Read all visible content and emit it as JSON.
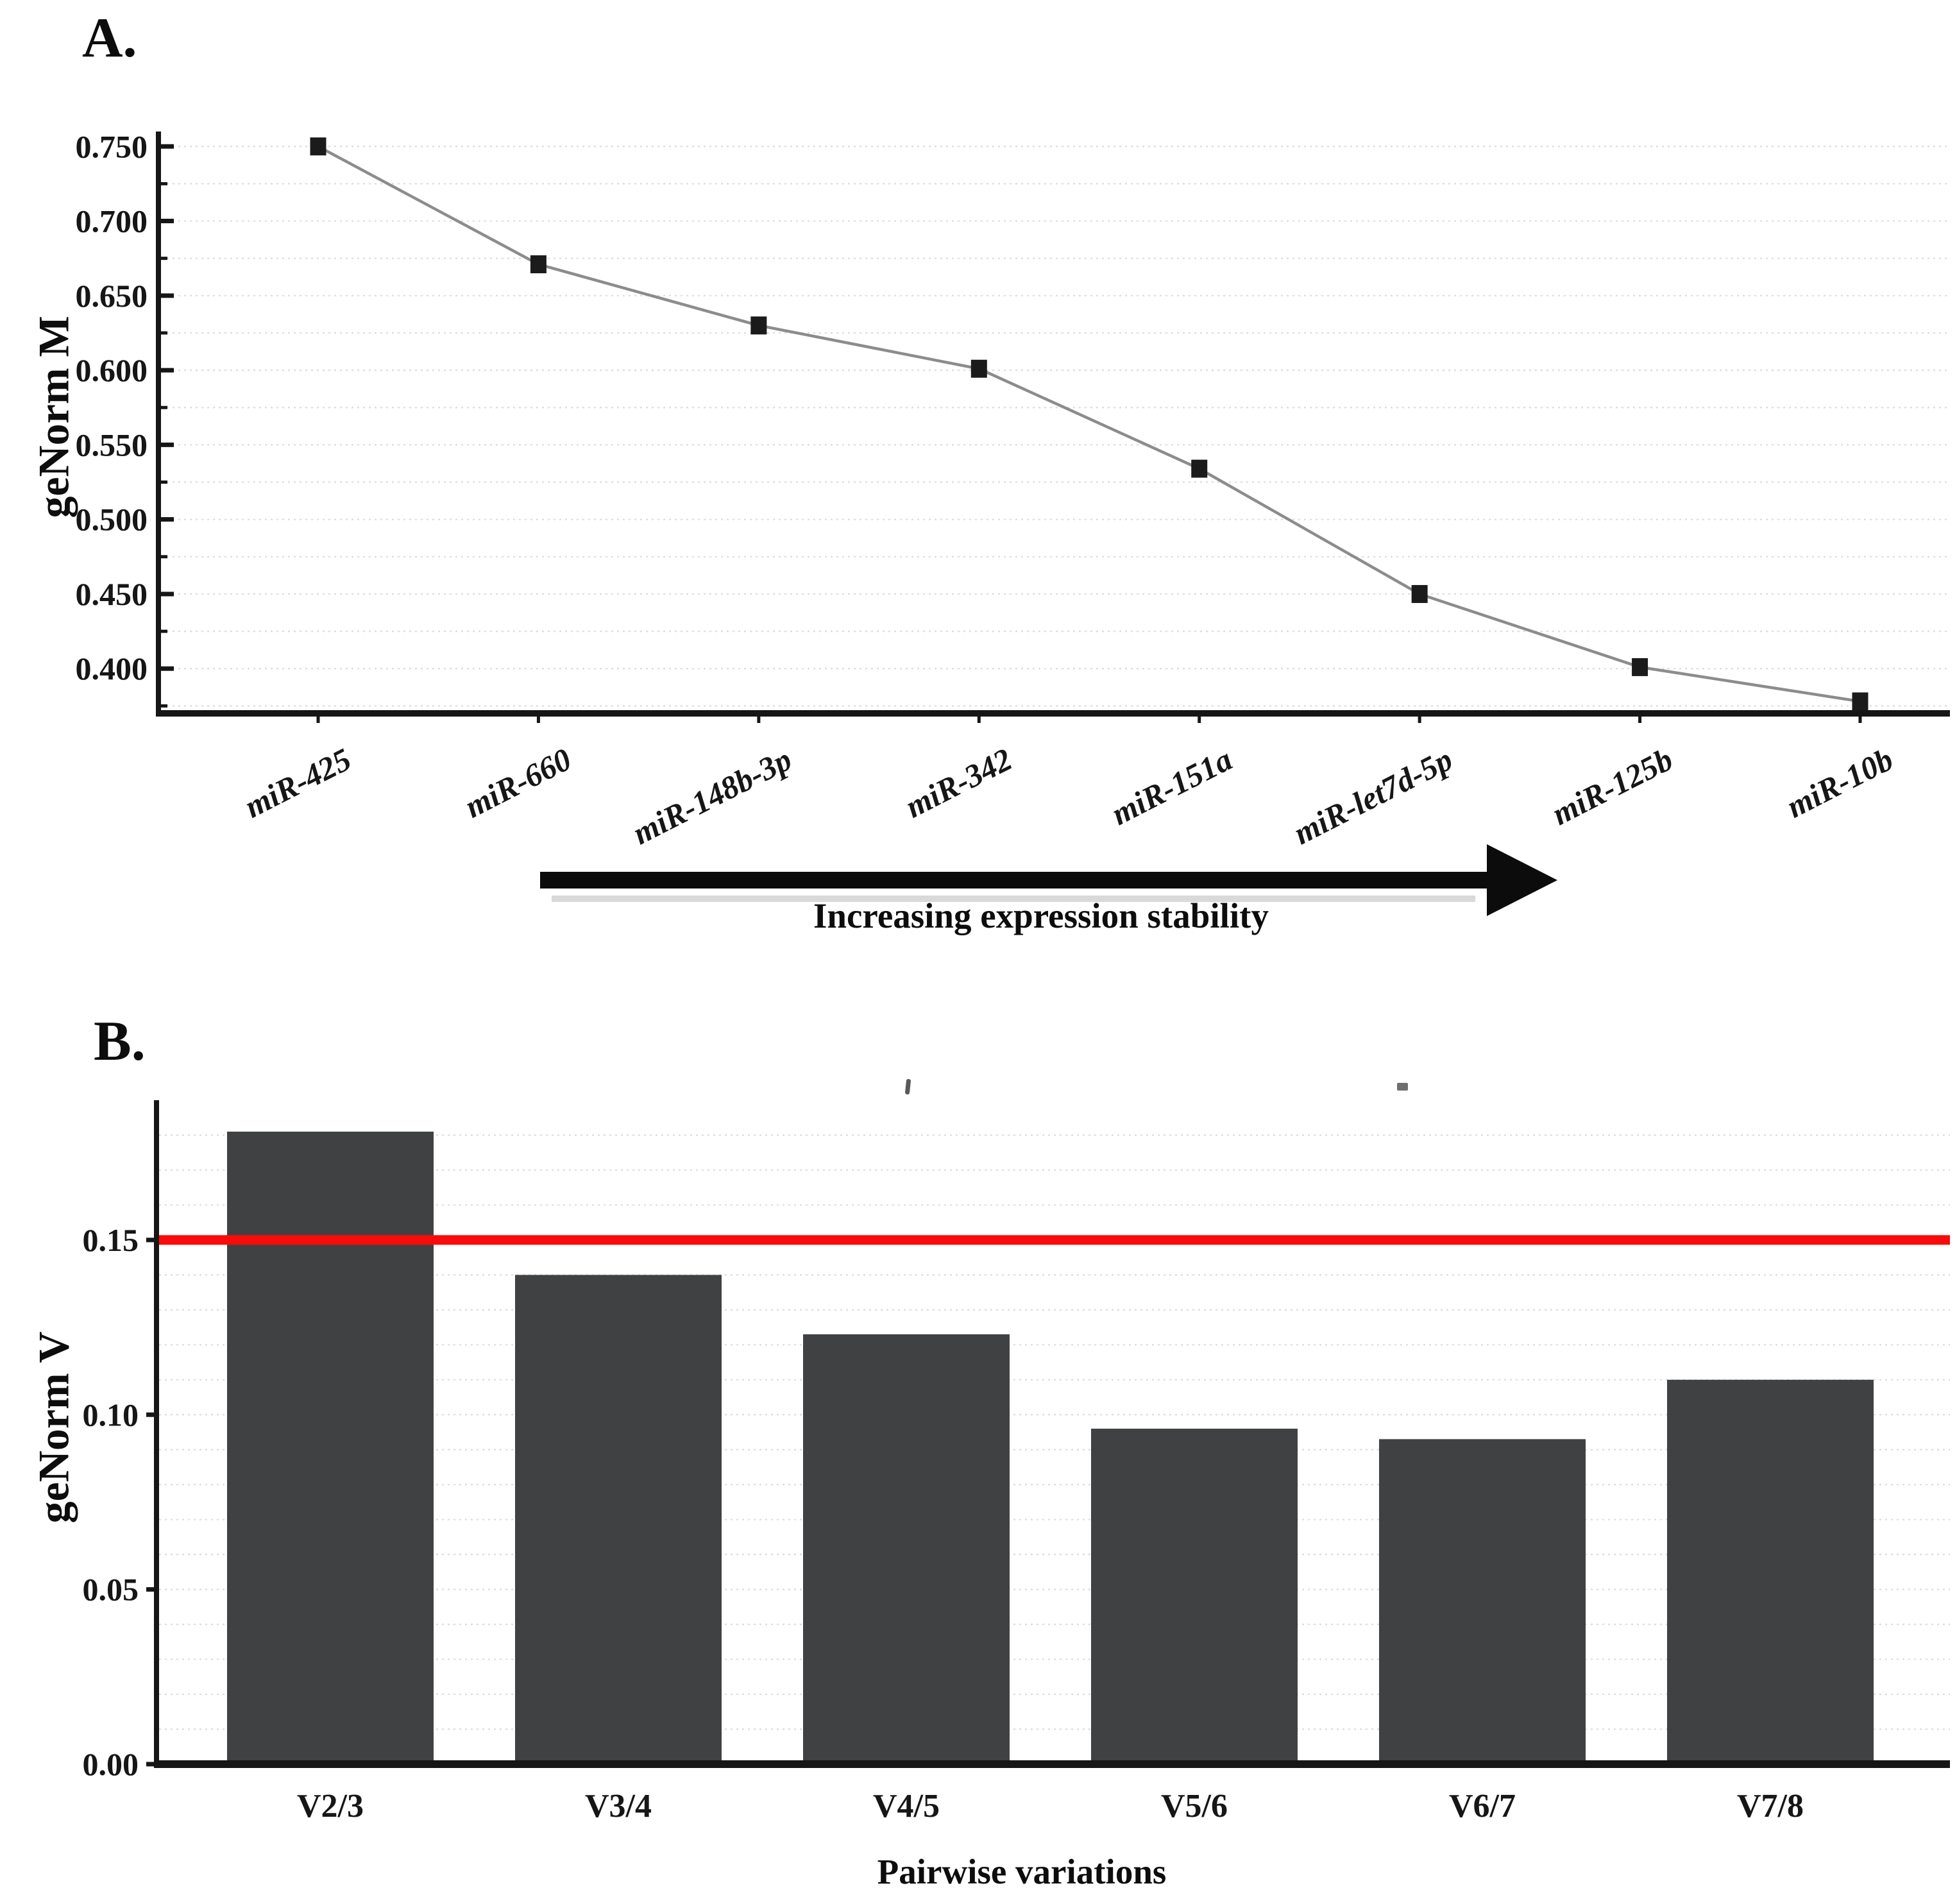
{
  "figure": {
    "background": "#ffffff",
    "panel_a": {
      "label": "A."
    },
    "panel_b": {
      "label": "B."
    }
  },
  "chart_data": [
    {
      "type": "line",
      "panel": "A",
      "title": "",
      "ylabel": "geNorm M",
      "xlabel": "",
      "categories": [
        "miR-425",
        "miR-660",
        "miR-148b-3p",
        "miR-342",
        "miR-151a",
        "miR-let7d-5p",
        "miR-125b",
        "miR-10b"
      ],
      "values": [
        0.75,
        0.671,
        0.63,
        0.601,
        0.534,
        0.45,
        0.401,
        0.378
      ],
      "ylim": [
        0.37,
        0.76
      ],
      "ytick_labels": [
        "0.750",
        "0.700",
        "0.650",
        "0.600",
        "0.550",
        "0.500",
        "0.450",
        "0.400"
      ],
      "ytick_minor_step": 0.025,
      "grid": "horizontal-dotted",
      "legend": "none",
      "line_color": "#8c8c8c",
      "marker": "filled-square",
      "marker_color": "#1b1b1b",
      "annotation_arrow": {
        "label": "Increasing expression stability",
        "direction": "right",
        "color": "#0c0c0c"
      }
    },
    {
      "type": "bar",
      "panel": "B",
      "title": "",
      "ylabel": "geNorm V",
      "xlabel": "Pairwise variations",
      "categories": [
        "V2/3",
        "V3/4",
        "V4/5",
        "V5/6",
        "V6/7",
        "V7/8"
      ],
      "values": [
        0.181,
        0.14,
        0.123,
        0.096,
        0.093,
        0.11
      ],
      "ylim": [
        0,
        0.19
      ],
      "ytick_labels": [
        "0.15",
        "0.10",
        "0.05",
        "0.00"
      ],
      "grid_minor_step": 0.01,
      "grid": "horizontal-dotted",
      "legend": "none",
      "bar_color": "#3f4142",
      "threshold_line": {
        "value": 0.15,
        "color": "#f90b0b"
      }
    }
  ]
}
